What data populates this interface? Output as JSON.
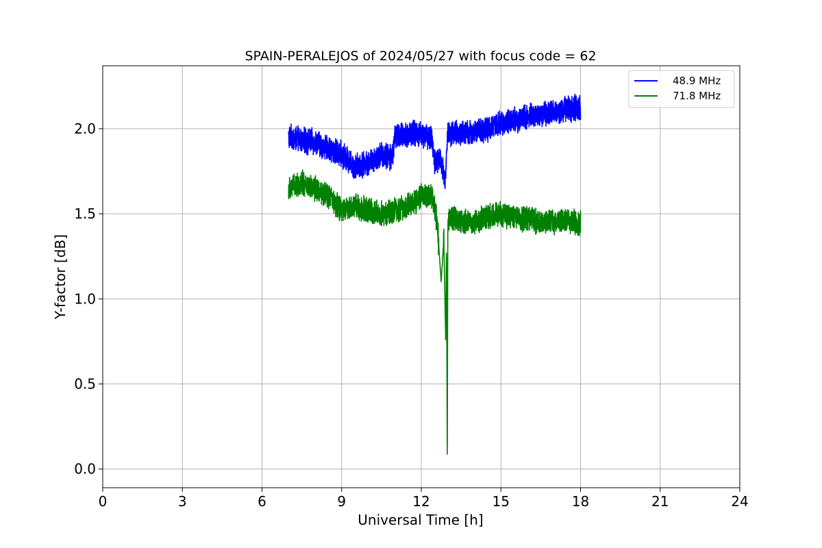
{
  "chart_data": {
    "type": "line",
    "title": "SPAIN-PERALEJOS of 2024/05/27 with focus code = 62",
    "xlabel": "Universal Time [h]",
    "ylabel": "Y-factor [dB]",
    "xlim": [
      0,
      24
    ],
    "ylim": [
      -0.11,
      2.37
    ],
    "xticks": [
      0,
      3,
      6,
      9,
      12,
      15,
      18,
      21,
      24
    ],
    "xtick_labels": [
      "0",
      "3",
      "6",
      "9",
      "12",
      "15",
      "18",
      "21",
      "24"
    ],
    "yticks": [
      0.0,
      0.5,
      1.0,
      1.5,
      2.0
    ],
    "ytick_labels": [
      "0.0",
      "0.5",
      "1.0",
      "1.5",
      "2.0"
    ],
    "grid": true,
    "legend_position": "top-right",
    "series": [
      {
        "name": "48.9 MHz",
        "color": "#0000ff",
        "x": [
          7.0,
          7.5,
          8.0,
          8.5,
          9.0,
          9.5,
          10.0,
          10.5,
          10.9,
          11.0,
          11.5,
          12.0,
          12.4,
          12.5,
          12.7,
          12.9,
          13.0,
          13.5,
          14.0,
          14.5,
          15.0,
          15.5,
          16.0,
          16.5,
          17.0,
          17.5,
          18.0
        ],
        "y": [
          1.95,
          1.93,
          1.92,
          1.88,
          1.85,
          1.78,
          1.8,
          1.85,
          1.83,
          1.95,
          1.97,
          1.97,
          1.95,
          1.8,
          1.82,
          1.7,
          1.98,
          1.97,
          1.98,
          2.0,
          2.03,
          2.05,
          2.07,
          2.08,
          2.1,
          2.12,
          2.12
        ],
        "noise": 0.065
      },
      {
        "name": "71.8 MHz",
        "color": "#008000",
        "x": [
          7.0,
          7.5,
          8.0,
          8.5,
          9.0,
          9.5,
          10.0,
          10.5,
          11.0,
          11.5,
          12.0,
          12.4,
          12.6,
          12.75,
          12.85,
          12.92,
          12.95,
          12.98,
          13.0,
          13.1,
          13.5,
          14.0,
          14.5,
          15.0,
          15.5,
          16.0,
          16.5,
          17.0,
          17.5,
          18.0
        ],
        "y": [
          1.65,
          1.68,
          1.65,
          1.6,
          1.52,
          1.55,
          1.52,
          1.5,
          1.52,
          1.55,
          1.6,
          1.6,
          1.45,
          1.1,
          1.35,
          0.75,
          1.35,
          0.0,
          1.45,
          1.48,
          1.46,
          1.45,
          1.48,
          1.5,
          1.48,
          1.47,
          1.45,
          1.45,
          1.46,
          1.44
        ],
        "noise": 0.065
      }
    ]
  }
}
